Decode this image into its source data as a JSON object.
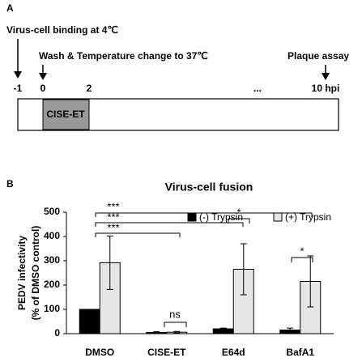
{
  "panel_a": {
    "label": "A",
    "binding": "Virus-cell binding at 4℃",
    "wash": "Wash & Temperature change to 37℃",
    "plaque": "Plaque assay",
    "timepoints": [
      "-1",
      "0",
      "2",
      "...",
      "10 hpi"
    ],
    "treatment": "CISE-ET"
  },
  "chart_data": {
    "type": "bar",
    "panel_label": "B",
    "title": "Virus-cell fusion",
    "y_label": [
      "PEDV infectivity",
      "(% of DMSO control)"
    ],
    "categories": [
      "DMSO",
      "CISE-ET",
      "E64d",
      "BafA1"
    ],
    "series": [
      {
        "name": "(-) Trypsin",
        "color": "#000000",
        "values": [
          100,
          5,
          20,
          15
        ],
        "errors": [
          0,
          3,
          3,
          8
        ]
      },
      {
        "name": "(+) Trypsin",
        "color": "#e6e6e6",
        "values": [
          292,
          6,
          265,
          215
        ],
        "errors": [
          110,
          3,
          105,
          105
        ]
      }
    ],
    "ylim": [
      0,
      500
    ],
    "yticks": [
      0,
      100,
      200,
      300,
      400,
      500
    ],
    "annotations": [
      "***",
      "***",
      "***",
      "ns",
      "*",
      "*"
    ]
  }
}
